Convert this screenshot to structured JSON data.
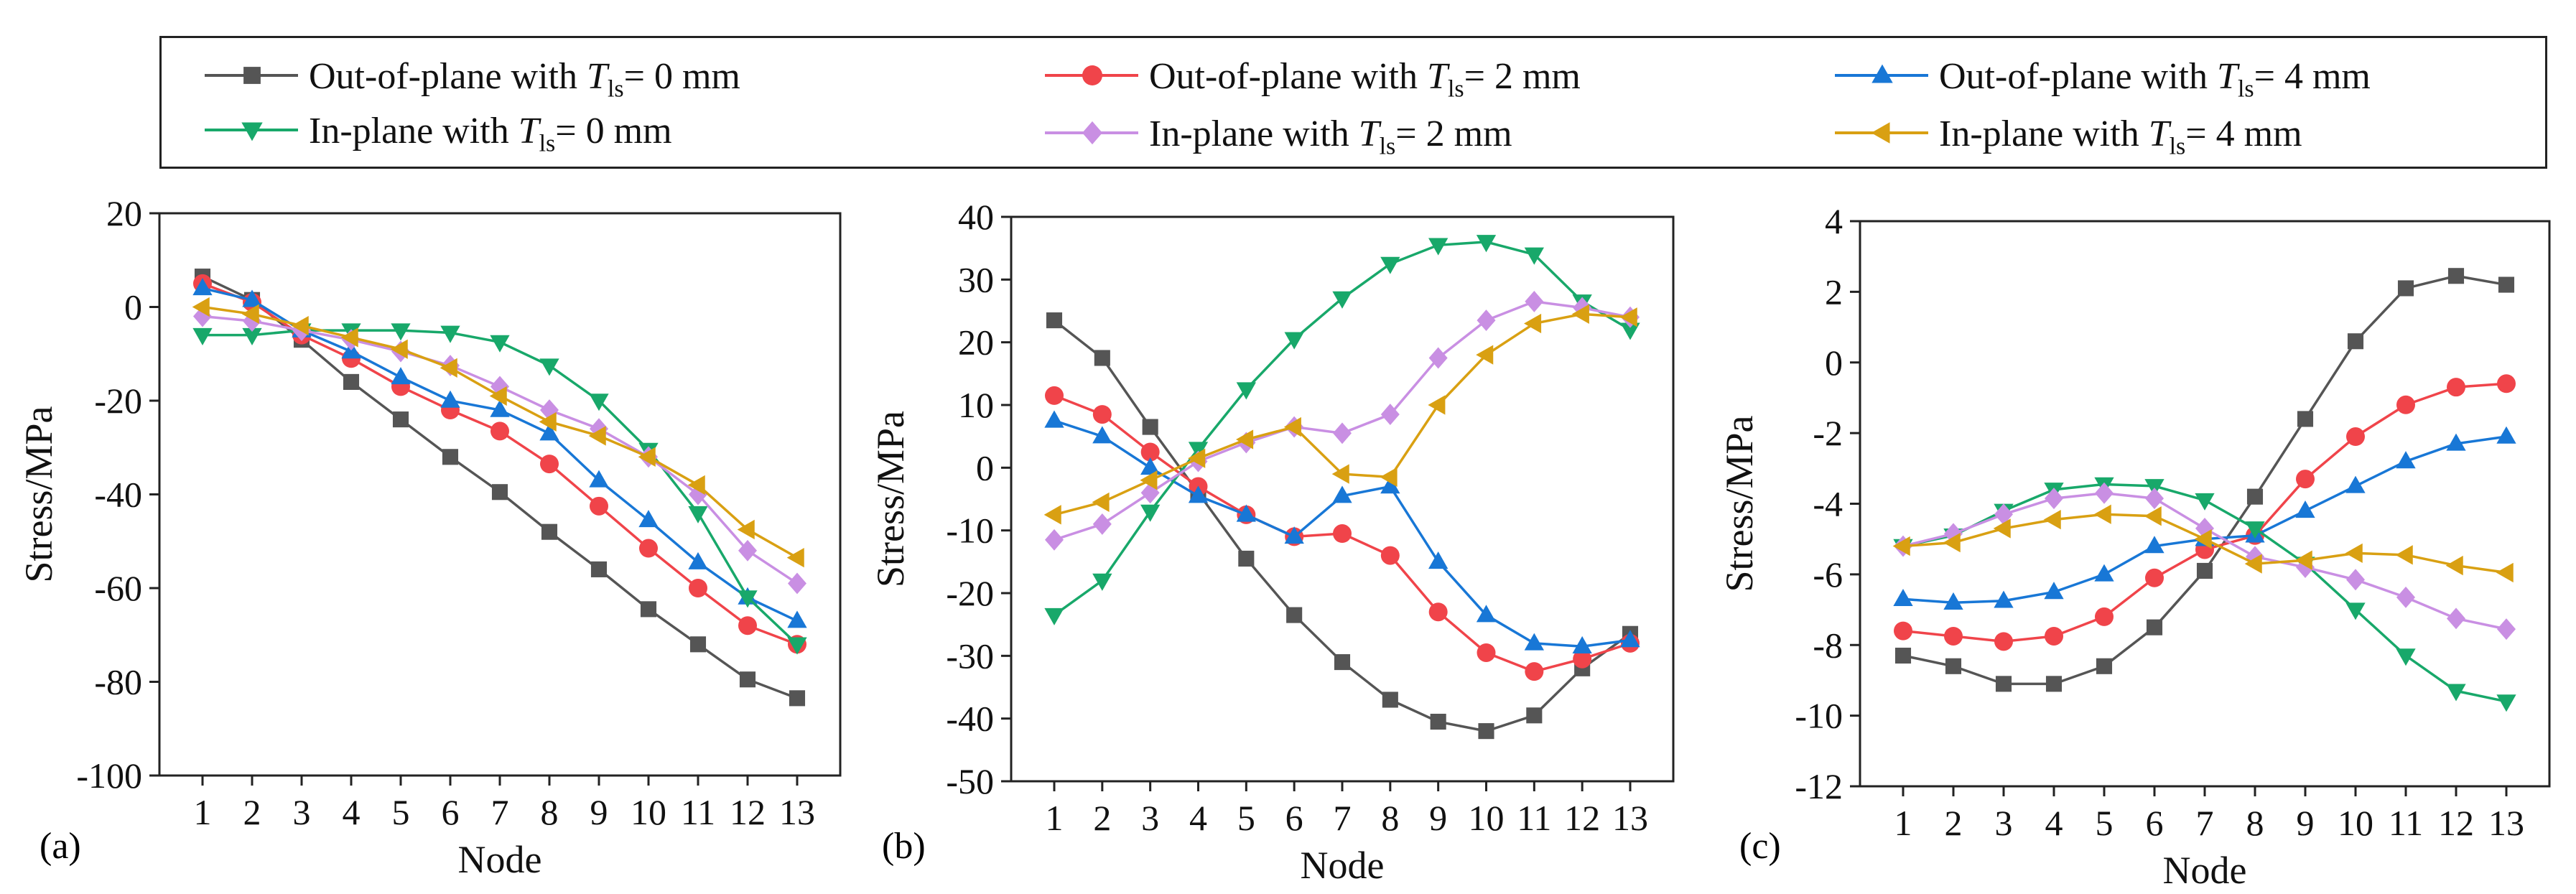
{
  "legend": [
    {
      "pre": "Out-of-plane with ",
      "sym": "T",
      "sub": "ls",
      "post": "= 0 mm",
      "color": "#555555",
      "marker": "square"
    },
    {
      "pre": "Out-of-plane with ",
      "sym": "T",
      "sub": "ls",
      "post": "= 2 mm",
      "color": "#f0444a",
      "marker": "circle"
    },
    {
      "pre": "Out-of-plane with ",
      "sym": "T",
      "sub": "ls",
      "post": "= 4 mm",
      "color": "#1877d6",
      "marker": "triangle-up"
    },
    {
      "pre": "In-plane with ",
      "sym": "T",
      "sub": "ls",
      "post": "= 0 mm",
      "color": "#18a86a",
      "marker": "triangle-down"
    },
    {
      "pre": "In-plane with ",
      "sym": "T",
      "sub": "ls",
      "post": "= 2 mm",
      "color": "#c98fe3",
      "marker": "diamond"
    },
    {
      "pre": "In-plane with ",
      "sym": "T",
      "sub": "ls",
      "post": "= 4 mm",
      "color": "#d9a012",
      "marker": "triangle-left"
    }
  ],
  "chart_data": [
    {
      "type": "line",
      "panel": "(a)",
      "xlabel": "Node",
      "ylabel": "Stress/MPa",
      "x": [
        1,
        2,
        3,
        4,
        5,
        6,
        7,
        8,
        9,
        10,
        11,
        12,
        13
      ],
      "ylim": [
        -100,
        20
      ],
      "yticks": [
        -100,
        -80,
        -60,
        -40,
        -20,
        0,
        20
      ],
      "series": [
        {
          "name": "Out-of-plane with Tls= 0 mm",
          "values": [
            6.5,
            1.5,
            -7,
            -16,
            -24,
            -32,
            -39.5,
            -48,
            -56,
            -64.5,
            -72,
            -79.5,
            -83.5
          ]
        },
        {
          "name": "Out-of-plane with Tls= 2 mm",
          "values": [
            5,
            1,
            -6,
            -11,
            -17,
            -22,
            -26.5,
            -33.5,
            -42.5,
            -51.5,
            -60,
            -68,
            -72
          ]
        },
        {
          "name": "Out-of-plane with Tls= 4 mm",
          "values": [
            4,
            1.5,
            -5,
            -9.5,
            -15,
            -20,
            -22,
            -27,
            -37,
            -45.5,
            -54.5,
            -62,
            -67
          ]
        },
        {
          "name": "In-plane with Tls= 0 mm",
          "values": [
            -6,
            -6,
            -5,
            -5,
            -5,
            -5.5,
            -7.5,
            -12.5,
            -20,
            -30.5,
            -44,
            -62,
            -72
          ]
        },
        {
          "name": "In-plane with Tls= 2 mm",
          "values": [
            -2,
            -3,
            -5,
            -7,
            -9.5,
            -12.5,
            -17,
            -22,
            -26,
            -32,
            -40,
            -52,
            -59
          ]
        },
        {
          "name": "In-plane with Tls= 4 mm",
          "values": [
            0,
            -1.5,
            -4,
            -6.5,
            -9,
            -13,
            -19,
            -24.5,
            -27.5,
            -32,
            -38,
            -47.5,
            -53.5
          ]
        }
      ]
    },
    {
      "type": "line",
      "panel": "(b)",
      "xlabel": "Node",
      "ylabel": "Stress/MPa",
      "x": [
        1,
        2,
        3,
        4,
        5,
        6,
        7,
        8,
        9,
        10,
        11,
        12,
        13
      ],
      "ylim": [
        -50,
        40
      ],
      "yticks": [
        -50,
        -40,
        -30,
        -20,
        -10,
        0,
        10,
        20,
        30,
        40
      ],
      "series": [
        {
          "name": "Out-of-plane with Tls= 0 mm",
          "values": [
            23.5,
            17.5,
            6.5,
            -4,
            -14.5,
            -23.5,
            -31,
            -37,
            -40.5,
            -42,
            -39.5,
            -32,
            -26.5
          ]
        },
        {
          "name": "Out-of-plane with Tls= 2 mm",
          "values": [
            11.5,
            8.5,
            2.5,
            -3,
            -7.5,
            -11,
            -10.5,
            -14,
            -23,
            -29.5,
            -32.5,
            -30.5,
            -28
          ]
        },
        {
          "name": "Out-of-plane with Tls= 4 mm",
          "values": [
            7.5,
            5,
            0,
            -4.5,
            -7.5,
            -11,
            -4.5,
            -3,
            -15,
            -23.5,
            -28,
            -28.5,
            -27.5
          ]
        },
        {
          "name": "In-plane with Tls= 0 mm",
          "values": [
            -23.5,
            -18,
            -7,
            3,
            12.5,
            20.5,
            27,
            32.5,
            35.5,
            36,
            34,
            26.5,
            22
          ]
        },
        {
          "name": "In-plane with Tls= 2 mm",
          "values": [
            -11.5,
            -9,
            -4,
            1,
            4,
            6.5,
            5.5,
            8.5,
            17.5,
            23.5,
            26.5,
            25.5,
            24
          ]
        },
        {
          "name": "In-plane with Tls= 4 mm",
          "values": [
            -7.5,
            -5.5,
            -2,
            1.5,
            4.5,
            6.5,
            -1,
            -1.5,
            10,
            18,
            23,
            24.5,
            24
          ]
        }
      ]
    },
    {
      "type": "line",
      "panel": "(c)",
      "xlabel": "Node",
      "ylabel": "Stress/MPa",
      "x": [
        1,
        2,
        3,
        4,
        5,
        6,
        7,
        8,
        9,
        10,
        11,
        12,
        13
      ],
      "ylim": [
        -12,
        4
      ],
      "yticks": [
        -12,
        -10,
        -8,
        -6,
        -4,
        -2,
        0,
        2,
        4
      ],
      "series": [
        {
          "name": "Out-of-plane with Tls= 0 mm",
          "values": [
            -8.3,
            -8.6,
            -9.1,
            -9.1,
            -8.6,
            -7.5,
            -5.9,
            -3.8,
            -1.6,
            0.6,
            2.1,
            2.45,
            2.2
          ]
        },
        {
          "name": "Out-of-plane with Tls= 2 mm",
          "values": [
            -7.6,
            -7.75,
            -7.9,
            -7.75,
            -7.2,
            -6.1,
            -5.3,
            -4.9,
            -3.3,
            -2.1,
            -1.2,
            -0.7,
            -0.6
          ]
        },
        {
          "name": "Out-of-plane with Tls= 4 mm",
          "values": [
            -6.7,
            -6.8,
            -6.75,
            -6.5,
            -6.0,
            -5.2,
            -5.0,
            -4.9,
            -4.2,
            -3.5,
            -2.8,
            -2.3,
            -2.1
          ]
        },
        {
          "name": "In-plane with Tls= 0 mm",
          "values": [
            -5.2,
            -4.9,
            -4.2,
            -3.6,
            -3.45,
            -3.5,
            -3.9,
            -4.7,
            -5.7,
            -7.0,
            -8.3,
            -9.3,
            -9.6
          ]
        },
        {
          "name": "In-plane with Tls= 2 mm",
          "values": [
            -5.2,
            -4.85,
            -4.3,
            -3.85,
            -3.7,
            -3.85,
            -4.7,
            -5.5,
            -5.8,
            -6.15,
            -6.65,
            -7.25,
            -7.55
          ]
        },
        {
          "name": "In-plane with Tls= 4 mm",
          "values": [
            -5.2,
            -5.1,
            -4.7,
            -4.45,
            -4.3,
            -4.35,
            -5.0,
            -5.7,
            -5.6,
            -5.4,
            -5.45,
            -5.75,
            -5.95
          ]
        }
      ]
    }
  ]
}
